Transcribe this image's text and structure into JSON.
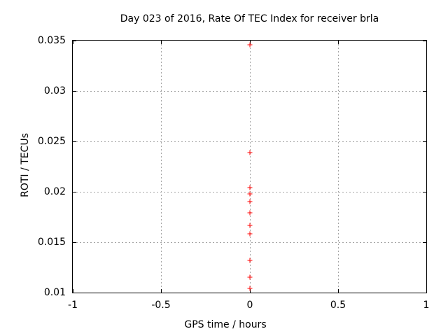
{
  "chart_data": {
    "type": "scatter",
    "title": "Day 023 of 2016, Rate Of TEC Index for receiver brla",
    "xlabel": "GPS time / hours",
    "ylabel": "ROTI / TECUs",
    "xlim": [
      -1,
      1
    ],
    "ylim": [
      0.01,
      0.035
    ],
    "xticks": {
      "values": [
        -1,
        -0.5,
        0,
        0.5,
        1
      ],
      "labels": [
        "-1",
        "-0.5",
        "0",
        "0.5",
        "1"
      ]
    },
    "yticks": {
      "values": [
        0.01,
        0.015,
        0.02,
        0.025,
        0.03,
        0.035
      ],
      "labels": [
        "0.01",
        "0.015",
        "0.02",
        "0.025",
        "0.03",
        "0.035"
      ]
    },
    "grid": true,
    "legend": "none",
    "series": [
      {
        "name": "ROTI",
        "marker": "plus",
        "color": "#ff0000",
        "points": [
          {
            "x": 0,
            "y": 0.0346
          },
          {
            "x": 0,
            "y": 0.0239
          },
          {
            "x": 0,
            "y": 0.0204
          },
          {
            "x": 0,
            "y": 0.0198
          },
          {
            "x": 0,
            "y": 0.019
          },
          {
            "x": 0,
            "y": 0.0179
          },
          {
            "x": 0,
            "y": 0.0167
          },
          {
            "x": 0,
            "y": 0.0158
          },
          {
            "x": 0,
            "y": 0.0132
          },
          {
            "x": 0,
            "y": 0.0115
          },
          {
            "x": 0,
            "y": 0.0104
          }
        ]
      }
    ],
    "colors": {
      "marker": "#ff0000",
      "grid": "#a5a5a5",
      "axis": "#000000",
      "background": "#ffffff"
    }
  }
}
